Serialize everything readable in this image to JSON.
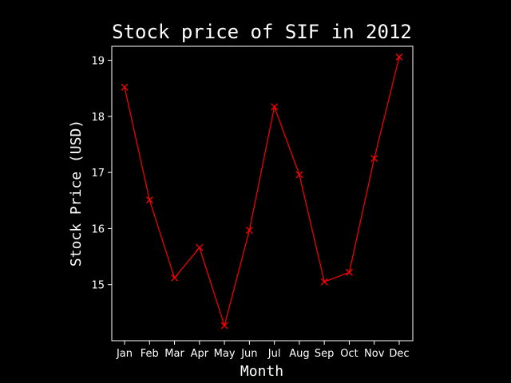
{
  "chart_data": {
    "type": "line",
    "title": "Stock price of SIF in 2012",
    "xlabel": "Month",
    "ylabel": "Stock Price (USD)",
    "categories": [
      "Jan",
      "Feb",
      "Mar",
      "Apr",
      "May",
      "Jun",
      "Jul",
      "Aug",
      "Sep",
      "Oct",
      "Nov",
      "Dec"
    ],
    "series": [
      {
        "values": [
          18.52,
          16.51,
          15.12,
          15.66,
          14.27,
          15.97,
          18.17,
          16.96,
          15.05,
          15.22,
          17.25,
          19.06
        ]
      }
    ],
    "ylim": [
      14.0,
      19.25
    ],
    "yticks": [
      15,
      16,
      17,
      18,
      19
    ],
    "grid": false,
    "legend": "none",
    "colors": {
      "background": "#000000",
      "axes": "#ffffff",
      "text": "#ffffff",
      "line": "#ff0000",
      "marker": "#ff0000"
    },
    "marker": "x"
  }
}
